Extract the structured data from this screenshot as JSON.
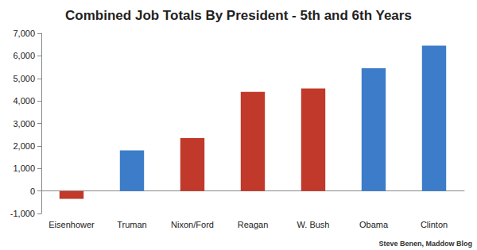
{
  "chart_data": {
    "type": "bar",
    "title": "Combined Job Totals By President - 5th and 6th Years",
    "categories": [
      "Eisenhower",
      "Truman",
      "Nixon/Ford",
      "Reagan",
      "W. Bush",
      "Obama",
      "Clinton"
    ],
    "values": [
      -350,
      1800,
      2350,
      4400,
      4550,
      5450,
      6450
    ],
    "colors": [
      "#c0392b",
      "#3d7cc9",
      "#c0392b",
      "#c0392b",
      "#c0392b",
      "#3d7cc9",
      "#3d7cc9"
    ],
    "ylim": [
      -1000,
      7000
    ],
    "yticks": [
      -1000,
      0,
      1000,
      2000,
      3000,
      4000,
      5000,
      6000,
      7000
    ],
    "grid": false,
    "annotations": [
      "Steve Benen, Maddow Blog"
    ]
  }
}
